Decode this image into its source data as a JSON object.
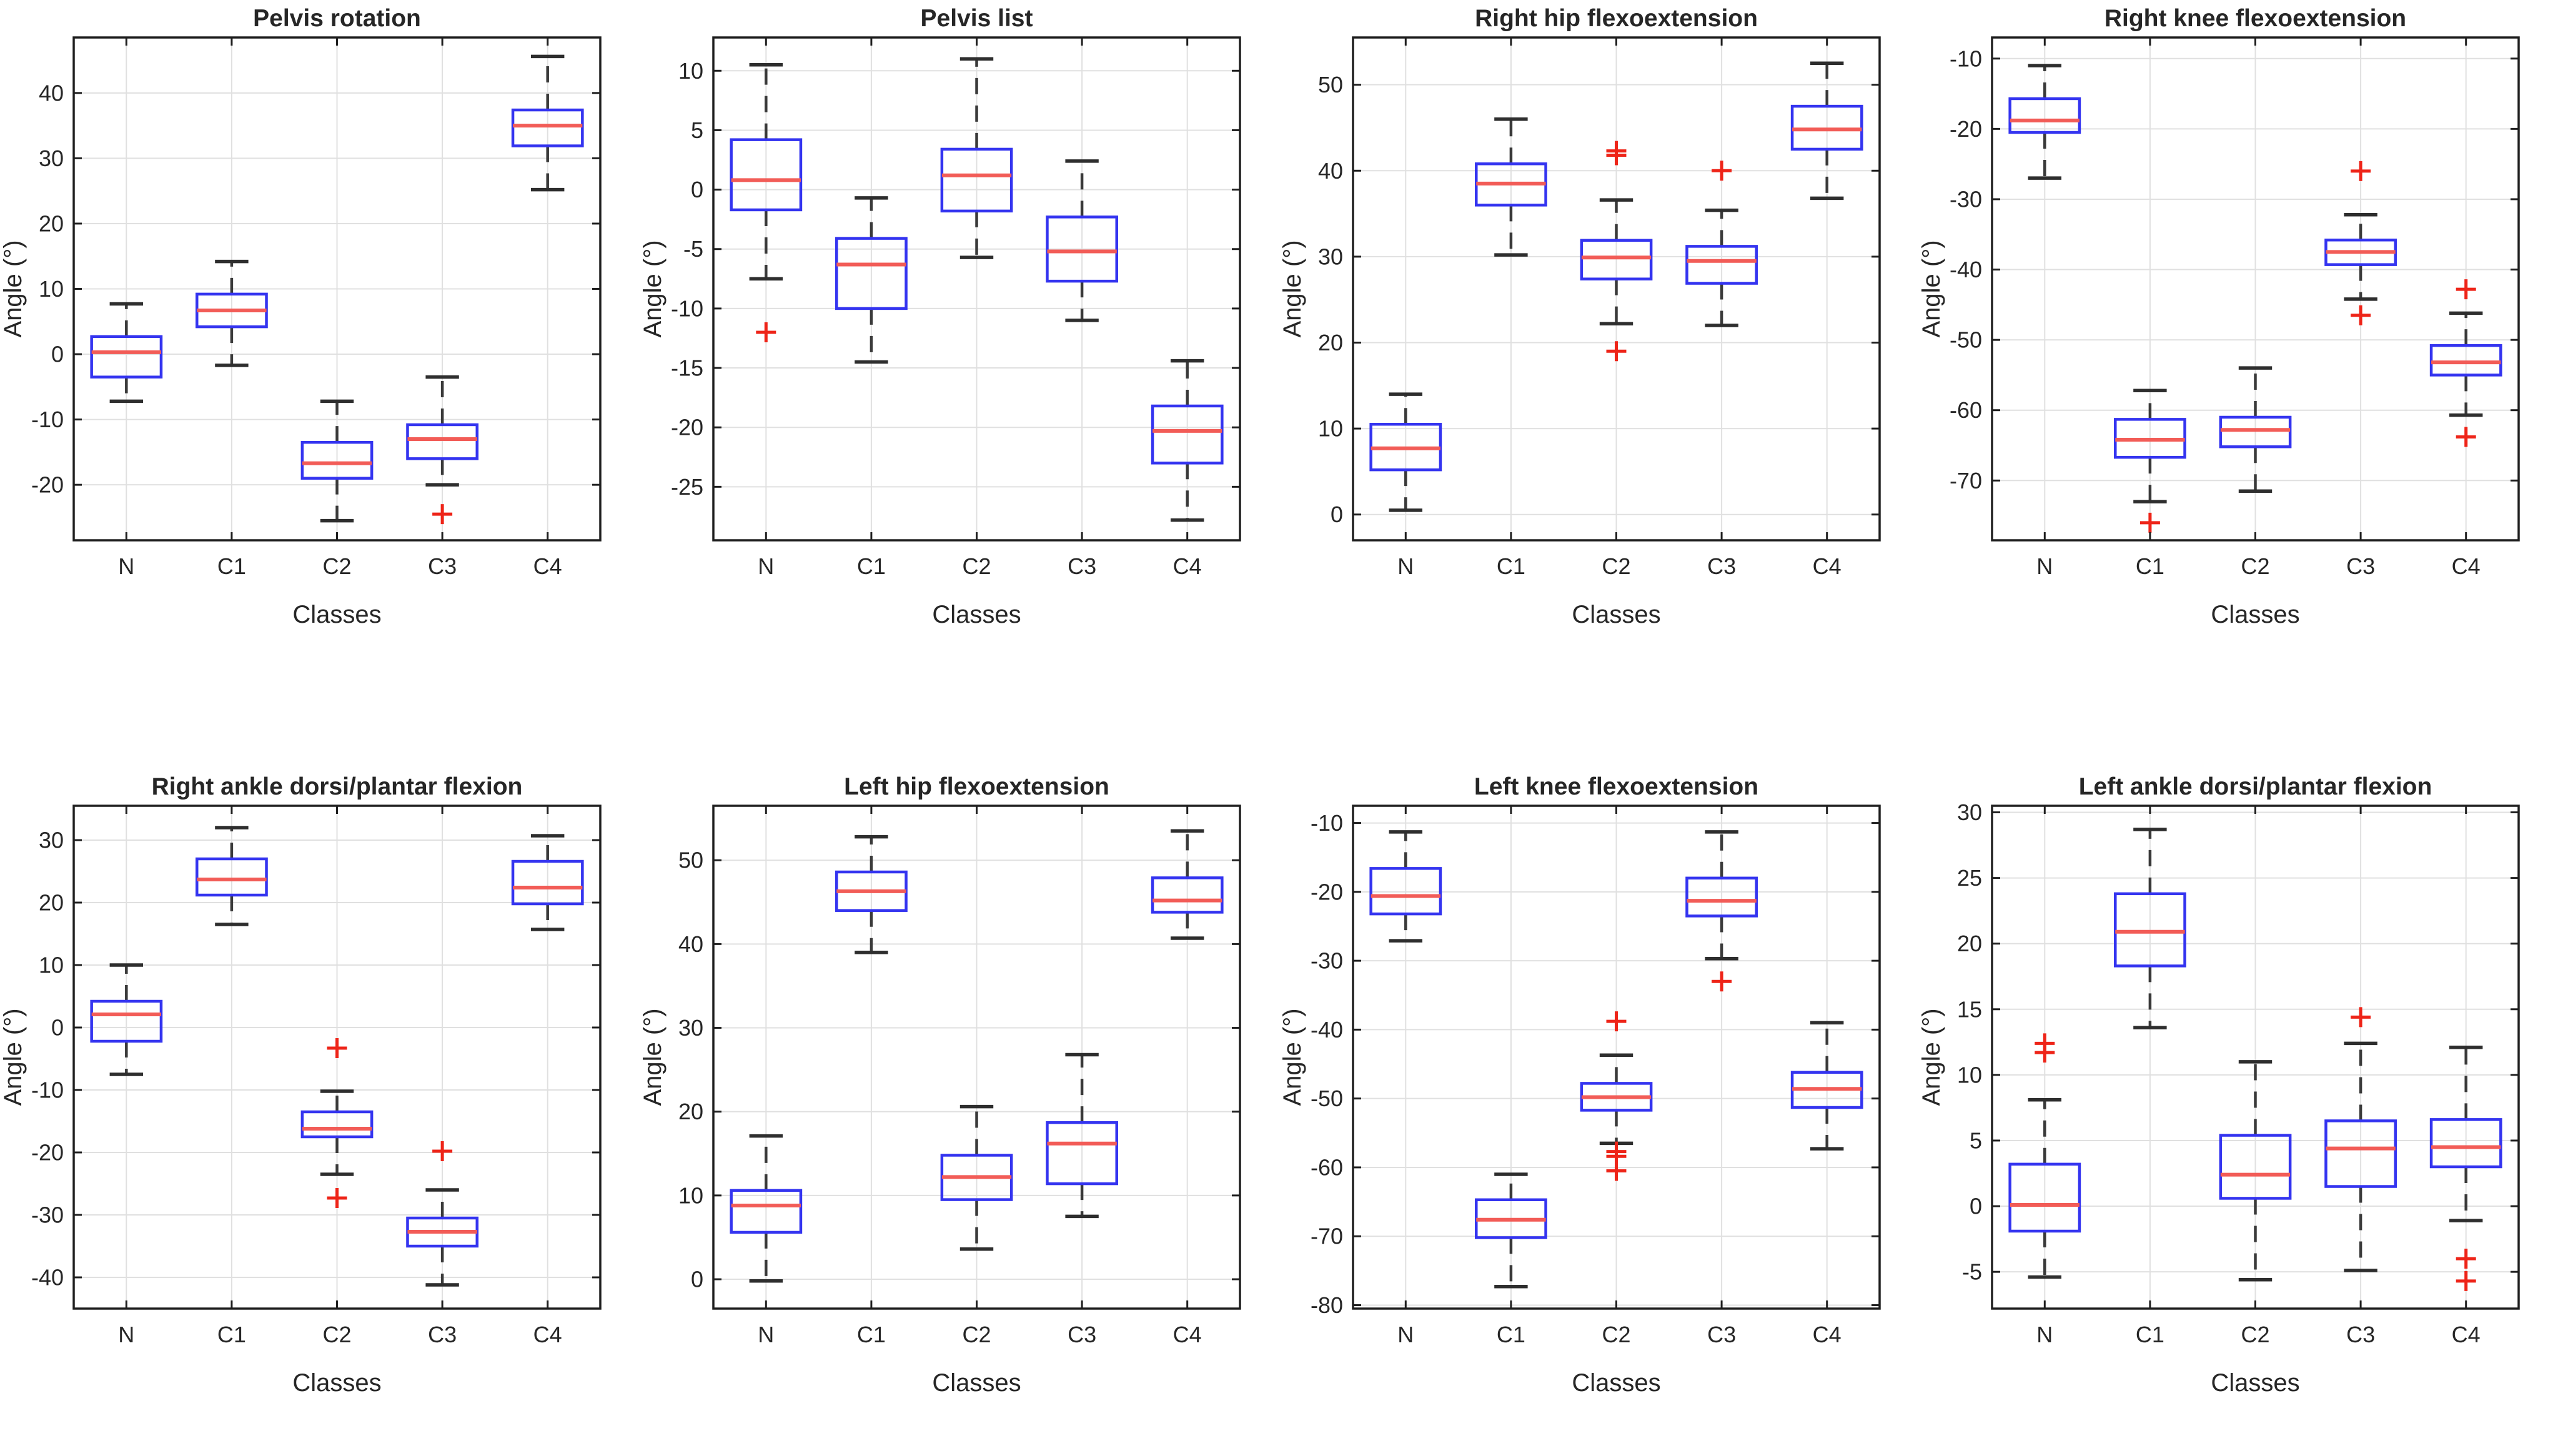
{
  "palette": {
    "background": "#ffffff",
    "box_edge": "#3434f0",
    "median": "#f25c57",
    "whisker": "#3a3a3a",
    "cap": "#2e2e2e",
    "outlier": "#ee2418",
    "grid": "#e0e0e0",
    "axes": "#1f1f1f",
    "text": "#262626"
  },
  "chart_data": {
    "type": "box",
    "layout": {
      "rows": 2,
      "cols": 4,
      "grid": true,
      "legend": "none"
    },
    "shared": {
      "xlabel": "Classes",
      "ylabel": "Angle (°)",
      "categories": [
        "N",
        "C1",
        "C2",
        "C3",
        "C4"
      ]
    },
    "plots": [
      {
        "title": "Pelvis rotation",
        "ylim": [
          -28.5,
          48.5
        ],
        "yticks": [
          -20,
          -10,
          0,
          10,
          20,
          30,
          40
        ],
        "boxes": [
          {
            "category": "N",
            "whisker_low": -7.2,
            "q1": -3.5,
            "median": 0.3,
            "q3": 2.7,
            "whisker_high": 7.7,
            "outliers": []
          },
          {
            "category": "C1",
            "whisker_low": -1.7,
            "q1": 4.2,
            "median": 6.7,
            "q3": 9.2,
            "whisker_high": 14.2,
            "outliers": []
          },
          {
            "category": "C2",
            "whisker_low": -25.5,
            "q1": -19.0,
            "median": -16.7,
            "q3": -13.5,
            "whisker_high": -7.2,
            "outliers": []
          },
          {
            "category": "C3",
            "whisker_low": -20.0,
            "q1": -16.0,
            "median": -13.0,
            "q3": -10.8,
            "whisker_high": -3.5,
            "outliers": [
              -24.5
            ]
          },
          {
            "category": "C4",
            "whisker_low": 25.2,
            "q1": 31.9,
            "median": 35.0,
            "q3": 37.4,
            "whisker_high": 45.6,
            "outliers": []
          }
        ]
      },
      {
        "title": "Pelvis list",
        "ylim": [
          -29.5,
          12.8
        ],
        "yticks": [
          -25,
          -20,
          -15,
          -10,
          -5,
          0,
          5,
          10
        ],
        "boxes": [
          {
            "category": "N",
            "whisker_low": -7.5,
            "q1": -1.7,
            "median": 0.8,
            "q3": 4.2,
            "whisker_high": 10.5,
            "outliers": [
              -12.0
            ]
          },
          {
            "category": "C1",
            "whisker_low": -14.5,
            "q1": -10.0,
            "median": -6.3,
            "q3": -4.1,
            "whisker_high": -0.7,
            "outliers": []
          },
          {
            "category": "C2",
            "whisker_low": -5.7,
            "q1": -1.8,
            "median": 1.2,
            "q3": 3.4,
            "whisker_high": 11.0,
            "outliers": []
          },
          {
            "category": "C3",
            "whisker_low": -11.0,
            "q1": -7.7,
            "median": -5.2,
            "q3": -2.3,
            "whisker_high": 2.4,
            "outliers": []
          },
          {
            "category": "C4",
            "whisker_low": -27.8,
            "q1": -23.0,
            "median": -20.3,
            "q3": -18.2,
            "whisker_high": -14.4,
            "outliers": []
          }
        ]
      },
      {
        "title": "Right hip flexoextension",
        "ylim": [
          -3.0,
          55.5
        ],
        "yticks": [
          0,
          10,
          20,
          30,
          40,
          50
        ],
        "boxes": [
          {
            "category": "N",
            "whisker_low": 0.5,
            "q1": 5.2,
            "median": 7.7,
            "q3": 10.5,
            "whisker_high": 14.0,
            "outliers": []
          },
          {
            "category": "C1",
            "whisker_low": 30.2,
            "q1": 36.0,
            "median": 38.5,
            "q3": 40.8,
            "whisker_high": 46.0,
            "outliers": []
          },
          {
            "category": "C2",
            "whisker_low": 22.2,
            "q1": 27.4,
            "median": 29.9,
            "q3": 31.9,
            "whisker_high": 36.6,
            "outliers": [
              42.3,
              41.8,
              19.0
            ]
          },
          {
            "category": "C3",
            "whisker_low": 22.0,
            "q1": 26.9,
            "median": 29.5,
            "q3": 31.2,
            "whisker_high": 35.4,
            "outliers": [
              40.0
            ]
          },
          {
            "category": "C4",
            "whisker_low": 36.8,
            "q1": 42.5,
            "median": 44.8,
            "q3": 47.5,
            "whisker_high": 52.5,
            "outliers": []
          }
        ]
      },
      {
        "title": "Right knee flexoextension",
        "ylim": [
          -78.5,
          -7.0
        ],
        "yticks": [
          -70,
          -60,
          -50,
          -40,
          -30,
          -20,
          -10
        ],
        "boxes": [
          {
            "category": "N",
            "whisker_low": -27.0,
            "q1": -20.5,
            "median": -18.8,
            "q3": -15.7,
            "whisker_high": -11.0,
            "outliers": []
          },
          {
            "category": "C1",
            "whisker_low": -73.0,
            "q1": -66.7,
            "median": -64.2,
            "q3": -61.3,
            "whisker_high": -57.2,
            "outliers": [
              -76.0
            ]
          },
          {
            "category": "C2",
            "whisker_low": -71.5,
            "q1": -65.2,
            "median": -62.8,
            "q3": -61.0,
            "whisker_high": -54.0,
            "outliers": []
          },
          {
            "category": "C3",
            "whisker_low": -44.2,
            "q1": -39.3,
            "median": -37.5,
            "q3": -35.8,
            "whisker_high": -32.2,
            "outliers": [
              -26.0,
              -46.5
            ]
          },
          {
            "category": "C4",
            "whisker_low": -60.7,
            "q1": -55.0,
            "median": -53.2,
            "q3": -50.8,
            "whisker_high": -46.2,
            "outliers": [
              -42.8,
              -63.8
            ]
          }
        ]
      },
      {
        "title": "Right ankle dorsi/plantar flexion",
        "ylim": [
          -45.0,
          35.5
        ],
        "yticks": [
          -40,
          -30,
          -20,
          -10,
          0,
          10,
          20,
          30
        ],
        "boxes": [
          {
            "category": "N",
            "whisker_low": -7.5,
            "q1": -2.2,
            "median": 2.1,
            "q3": 4.2,
            "whisker_high": 10.0,
            "outliers": []
          },
          {
            "category": "C1",
            "whisker_low": 16.5,
            "q1": 21.2,
            "median": 23.7,
            "q3": 27.0,
            "whisker_high": 32.0,
            "outliers": []
          },
          {
            "category": "C2",
            "whisker_low": -23.5,
            "q1": -17.5,
            "median": -16.2,
            "q3": -13.5,
            "whisker_high": -10.2,
            "outliers": [
              -3.3,
              -27.3
            ]
          },
          {
            "category": "C3",
            "whisker_low": -41.2,
            "q1": -35.0,
            "median": -32.7,
            "q3": -30.5,
            "whisker_high": -26.0,
            "outliers": [
              -19.8
            ]
          },
          {
            "category": "C4",
            "whisker_low": 15.7,
            "q1": 19.8,
            "median": 22.4,
            "q3": 26.6,
            "whisker_high": 30.7,
            "outliers": []
          }
        ]
      },
      {
        "title": "Left hip flexoextension",
        "ylim": [
          -3.5,
          56.5
        ],
        "yticks": [
          0,
          10,
          20,
          30,
          40,
          50
        ],
        "boxes": [
          {
            "category": "N",
            "whisker_low": -0.2,
            "q1": 5.6,
            "median": 8.8,
            "q3": 10.6,
            "whisker_high": 17.1,
            "outliers": []
          },
          {
            "category": "C1",
            "whisker_low": 39.0,
            "q1": 44.0,
            "median": 46.3,
            "q3": 48.6,
            "whisker_high": 52.8,
            "outliers": []
          },
          {
            "category": "C2",
            "whisker_low": 3.6,
            "q1": 9.5,
            "median": 12.2,
            "q3": 14.8,
            "whisker_high": 20.6,
            "outliers": []
          },
          {
            "category": "C3",
            "whisker_low": 7.5,
            "q1": 11.4,
            "median": 16.2,
            "q3": 18.7,
            "whisker_high": 26.8,
            "outliers": []
          },
          {
            "category": "C4",
            "whisker_low": 40.7,
            "q1": 43.8,
            "median": 45.2,
            "q3": 47.9,
            "whisker_high": 53.5,
            "outliers": []
          }
        ]
      },
      {
        "title": "Left knee flexoextension",
        "ylim": [
          -80.5,
          -7.5
        ],
        "yticks": [
          -80,
          -70,
          -60,
          -50,
          -40,
          -30,
          -20,
          -10
        ],
        "boxes": [
          {
            "category": "N",
            "whisker_low": -27.1,
            "q1": -23.2,
            "median": -20.6,
            "q3": -16.6,
            "whisker_high": -11.3,
            "outliers": []
          },
          {
            "category": "C1",
            "whisker_low": -77.3,
            "q1": -70.2,
            "median": -67.6,
            "q3": -64.7,
            "whisker_high": -61.0,
            "outliers": []
          },
          {
            "category": "C2",
            "whisker_low": -56.5,
            "q1": -51.7,
            "median": -49.8,
            "q3": -47.8,
            "whisker_high": -43.7,
            "outliers": [
              -38.8,
              -57.7,
              -58.4,
              -60.5
            ]
          },
          {
            "category": "C3",
            "whisker_low": -29.7,
            "q1": -23.5,
            "median": -21.3,
            "q3": -18.0,
            "whisker_high": -11.3,
            "outliers": [
              -33.0
            ]
          },
          {
            "category": "C4",
            "whisker_low": -57.3,
            "q1": -51.3,
            "median": -48.6,
            "q3": -46.2,
            "whisker_high": -39.0,
            "outliers": []
          }
        ]
      },
      {
        "title": "Left ankle dorsi/plantar flexion",
        "ylim": [
          -7.8,
          30.5
        ],
        "yticks": [
          -5,
          0,
          5,
          10,
          15,
          20,
          25,
          30
        ],
        "boxes": [
          {
            "category": "N",
            "whisker_low": -5.4,
            "q1": -1.9,
            "median": 0.1,
            "q3": 3.2,
            "whisker_high": 8.1,
            "outliers": [
              12.4,
              11.7
            ]
          },
          {
            "category": "C1",
            "whisker_low": 13.6,
            "q1": 18.3,
            "median": 20.9,
            "q3": 23.8,
            "whisker_high": 28.7,
            "outliers": []
          },
          {
            "category": "C2",
            "whisker_low": -5.6,
            "q1": 0.6,
            "median": 2.4,
            "q3": 5.4,
            "whisker_high": 11.0,
            "outliers": []
          },
          {
            "category": "C3",
            "whisker_low": -4.9,
            "q1": 1.5,
            "median": 4.4,
            "q3": 6.5,
            "whisker_high": 12.4,
            "outliers": [
              14.4
            ]
          },
          {
            "category": "C4",
            "whisker_low": -1.1,
            "q1": 3.0,
            "median": 4.5,
            "q3": 6.6,
            "whisker_high": 12.1,
            "outliers": [
              -4.0,
              -5.7
            ]
          }
        ]
      }
    ]
  }
}
